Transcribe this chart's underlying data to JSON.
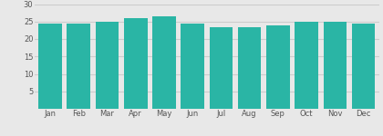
{
  "categories": [
    "Jan",
    "Feb",
    "Mar",
    "Apr",
    "May",
    "Jun",
    "Jul",
    "Aug",
    "Sep",
    "Oct",
    "Nov",
    "Dec"
  ],
  "values": [
    24.5,
    24.5,
    25.0,
    26.0,
    26.5,
    24.5,
    23.5,
    23.5,
    24.0,
    25.0,
    25.0,
    24.5
  ],
  "bar_color": "#2ab5a5",
  "ylim": [
    0,
    30
  ],
  "yticks": [
    5,
    10,
    15,
    20,
    25,
    30
  ],
  "background_color": "#e8e8e8",
  "grid_color": "#cccccc",
  "tick_fontsize": 6.0,
  "bar_width": 0.82
}
